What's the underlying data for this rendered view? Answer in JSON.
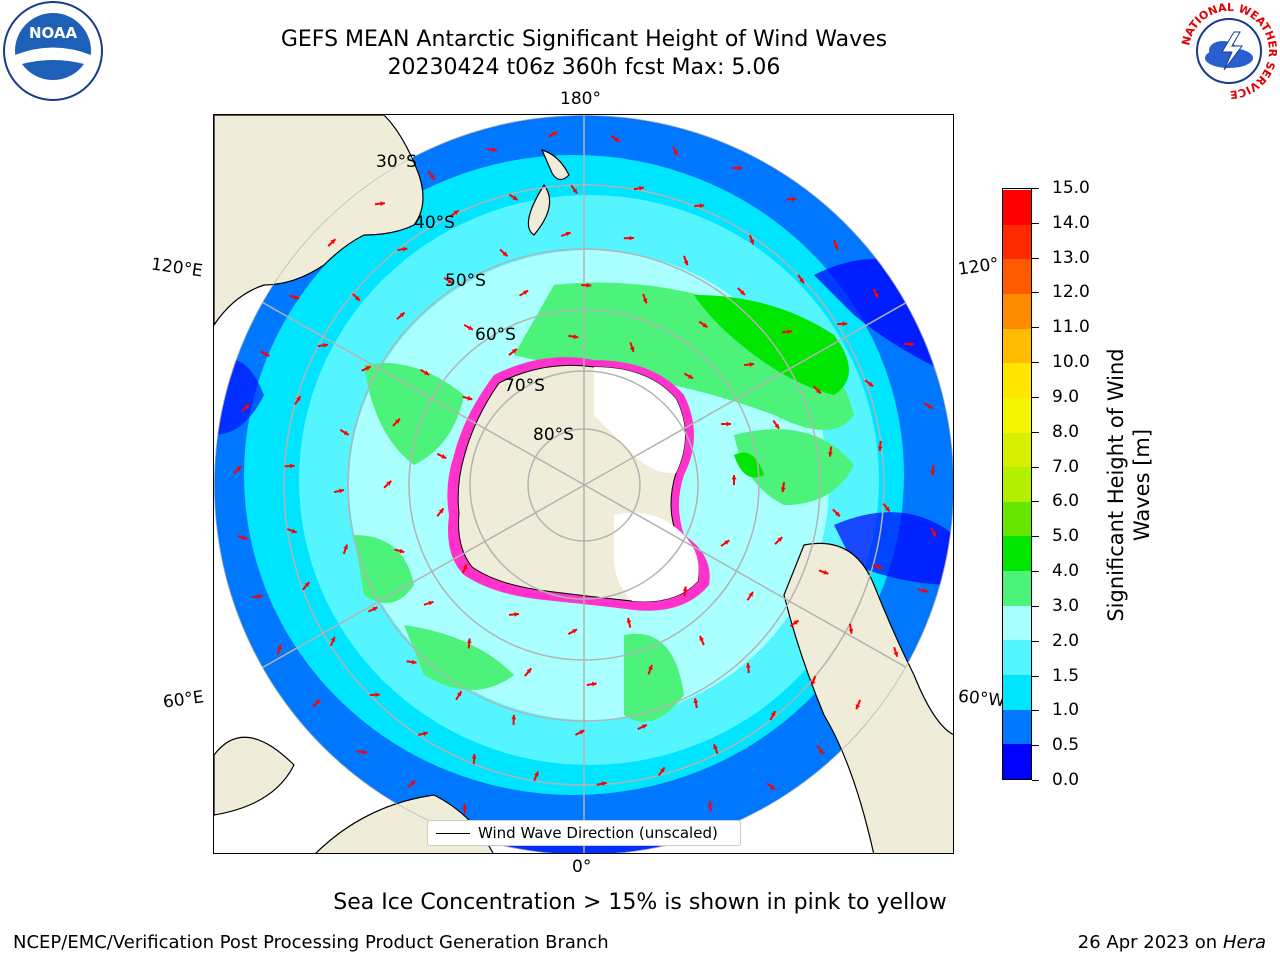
{
  "header": {
    "title_line1": "GEFS MEAN Antarctic Significant Height of Wind Waves",
    "title_line2": "20230424 t06z 360h fcst   Max: 5.06"
  },
  "logos": {
    "left": {
      "icon": "noaa-logo-icon",
      "text": "NOAA"
    },
    "right": {
      "icon": "nws-logo-icon",
      "ring_text": "NATIONAL WEATHER SERVICE"
    }
  },
  "map": {
    "projection": "south-polar-stereographic",
    "longitude_labels": {
      "top": "180°",
      "bottom": "0°",
      "upper_left": "120°E",
      "lower_left": "60°E",
      "upper_right": "120°",
      "lower_right": "60°W"
    },
    "latitude_labels": [
      "30°S",
      "40°S",
      "50°S",
      "60°S",
      "70°S",
      "80°S"
    ],
    "legend": {
      "text": "Wind Wave Direction (unscaled)"
    },
    "colors": {
      "land": "#efedd9",
      "ice_sheet": "#ffffff",
      "sea_ice_edge": "#ff33cc",
      "arrow": "#ff0000",
      "graticule": "#b3b3b3"
    }
  },
  "colorbar": {
    "label": "Significant Height of Wind Waves [m]",
    "ticks": [
      "0.0",
      "0.5",
      "1.0",
      "1.5",
      "2.0",
      "3.0",
      "4.0",
      "5.0",
      "6.0",
      "7.0",
      "8.0",
      "9.0",
      "10.0",
      "11.0",
      "12.0",
      "13.0",
      "14.0",
      "15.0"
    ],
    "colors": [
      "#0000ff",
      "#0077ff",
      "#00e5ff",
      "#55f5ff",
      "#aaffff",
      "#4cf27a",
      "#00e600",
      "#66e600",
      "#b3f000",
      "#d6f000",
      "#f5f500",
      "#ffe600",
      "#ffbb00",
      "#ff8c00",
      "#ff5a00",
      "#ff2a00",
      "#ff0000"
    ]
  },
  "footer": {
    "subtitle": "Sea Ice Concentration > 15% is shown in pink to yellow",
    "left": "NCEP/EMC/Verification Post Processing Product Generation Branch",
    "right_date": "26 Apr 2023 on ",
    "right_host": "Hera"
  }
}
